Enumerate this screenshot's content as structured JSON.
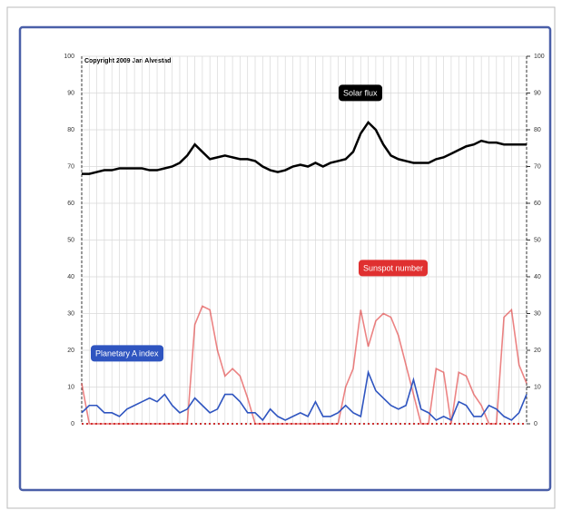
{
  "chart_data": {
    "type": "line",
    "annotation": "Copyright 2009 Jan Alvestad",
    "series": [
      {
        "name": "Solar flux",
        "color": "#000000",
        "values": [
          68,
          68,
          68.5,
          69,
          69,
          69.5,
          69.5,
          69.5,
          69.5,
          69,
          69,
          69.5,
          70,
          71,
          73,
          76,
          74,
          72,
          72.5,
          73,
          72.5,
          72,
          72,
          71.5,
          70,
          69,
          68.5,
          69,
          70,
          70.5,
          70,
          71,
          70,
          71,
          71.5,
          72,
          74,
          79,
          82,
          80,
          76,
          73,
          72,
          71.5,
          71,
          71,
          71,
          72,
          72.5,
          73.5,
          74.5,
          75.5,
          76,
          77,
          76.5,
          76.5,
          76,
          76,
          76,
          76
        ]
      },
      {
        "name": "Sunspot number",
        "color": "#e03030",
        "values": [
          11,
          0,
          0,
          0,
          0,
          0,
          0,
          0,
          0,
          0,
          0,
          0,
          0,
          0,
          0,
          27,
          32,
          31,
          20,
          13,
          15,
          13,
          7,
          0,
          0,
          0,
          0,
          0,
          0,
          0,
          0,
          0,
          0,
          0,
          0,
          10,
          15,
          31,
          21,
          28,
          30,
          29,
          24,
          16,
          8,
          0,
          0,
          15,
          14,
          0,
          14,
          13,
          8,
          5,
          0,
          0,
          29,
          31,
          16,
          11
        ]
      },
      {
        "name": "Planetary A index",
        "color": "#2f55c0",
        "values": [
          3,
          5,
          5,
          3,
          3,
          2,
          4,
          5,
          6,
          7,
          6,
          8,
          5,
          3,
          4,
          7,
          5,
          3,
          4,
          8,
          8,
          6,
          3,
          3,
          1,
          4,
          2,
          1,
          2,
          3,
          2,
          6,
          2,
          2,
          3,
          5,
          3,
          2,
          14,
          9,
          7,
          5,
          4,
          5,
          12,
          4,
          3,
          1,
          2,
          1,
          6,
          5,
          2,
          2,
          5,
          4,
          2,
          1,
          3,
          8
        ]
      }
    ],
    "ylim": [
      0,
      100
    ],
    "yticks": [
      0,
      10,
      20,
      30,
      40,
      50,
      60,
      70,
      80,
      90,
      100
    ],
    "y2lim": [
      0,
      100
    ],
    "y2ticks": [
      0,
      10,
      20,
      30,
      40,
      50,
      60,
      70,
      80,
      90,
      100
    ],
    "grid": true
  }
}
